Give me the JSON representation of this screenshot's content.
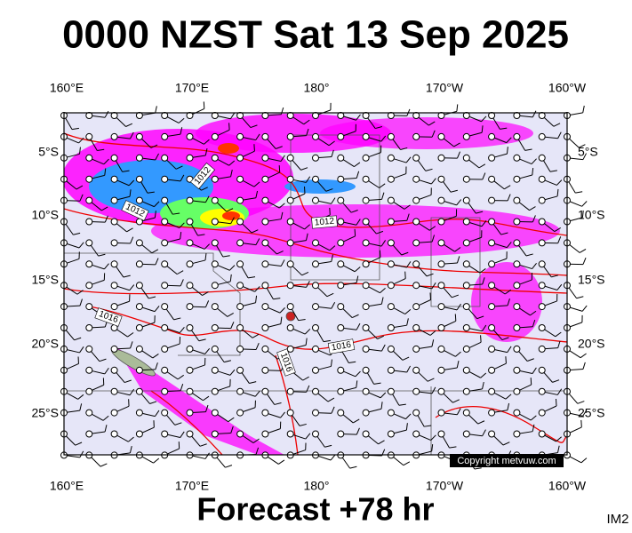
{
  "header": {
    "title": "0000 NZST Sat 13 Sep 2025"
  },
  "lon_labels": [
    "160°E",
    "170°E",
    "180°",
    "170°W",
    "160°W"
  ],
  "lat_labels": [
    "5°S",
    "10°S",
    "15°S",
    "20°S",
    "25°S"
  ],
  "isobar_labels": [
    "1012",
    "1012",
    "1012",
    "1016",
    "1016",
    "1016"
  ],
  "copyright": "Copyright metvuw.com",
  "footer": {
    "forecast": "Forecast +78 hr",
    "image_id": "IM2"
  }
}
